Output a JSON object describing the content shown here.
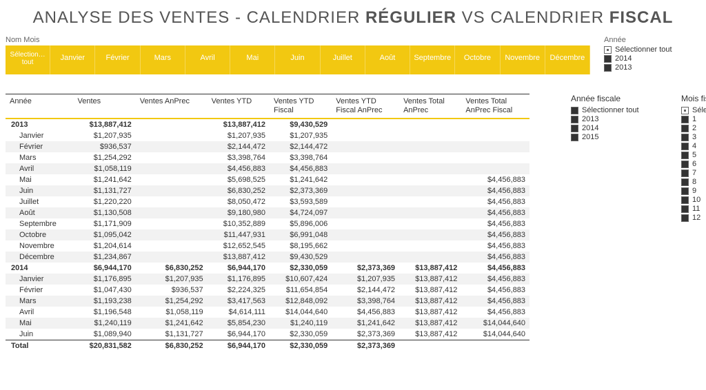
{
  "title_pre": "ANALYSE DES VENTES - CALENDRIER ",
  "title_b1": "RÉGULIER",
  "title_mid": " VS CALENDRIER ",
  "title_b2": "FISCAL",
  "month_label": "Nom Mois",
  "months": [
    "Sélection… tout",
    "Janvier",
    "Février",
    "Mars",
    "Avril",
    "Mai",
    "Juin",
    "Juillet",
    "Août",
    "Septembre",
    "Octobre",
    "Novembre",
    "Décembre"
  ],
  "annee_label": "Année",
  "annee_slicer": [
    {
      "txt": "Sélectionner tout",
      "cls": "dot"
    },
    {
      "txt": "2014",
      "cls": ""
    },
    {
      "txt": "2013",
      "cls": ""
    }
  ],
  "cols": [
    "Année",
    "Ventes",
    "Ventes AnPrec",
    "Ventes YTD",
    "Ventes YTD\nFiscal",
    "Ventes YTD\nFiscal AnPrec",
    "Ventes Total\nAnPrec",
    "Ventes Total\nAnPrec Fiscal"
  ],
  "rows": [
    {
      "t": "y",
      "c": [
        "2013",
        "$13,887,412",
        "",
        "$13,887,412",
        "$9,430,529",
        "",
        "",
        ""
      ]
    },
    {
      "t": "m",
      "a": 0,
      "c": [
        "Janvier",
        "$1,207,935",
        "",
        "$1,207,935",
        "$1,207,935",
        "",
        "",
        ""
      ]
    },
    {
      "t": "m",
      "a": 1,
      "c": [
        "Février",
        "$936,537",
        "",
        "$2,144,472",
        "$2,144,472",
        "",
        "",
        ""
      ]
    },
    {
      "t": "m",
      "a": 0,
      "c": [
        "Mars",
        "$1,254,292",
        "",
        "$3,398,764",
        "$3,398,764",
        "",
        "",
        ""
      ]
    },
    {
      "t": "m",
      "a": 1,
      "c": [
        "Avril",
        "$1,058,119",
        "",
        "$4,456,883",
        "$4,456,883",
        "",
        "",
        ""
      ]
    },
    {
      "t": "m",
      "a": 0,
      "c": [
        "Mai",
        "$1,241,642",
        "",
        "$5,698,525",
        "$1,241,642",
        "",
        "",
        "$4,456,883"
      ]
    },
    {
      "t": "m",
      "a": 1,
      "c": [
        "Juin",
        "$1,131,727",
        "",
        "$6,830,252",
        "$2,373,369",
        "",
        "",
        "$4,456,883"
      ]
    },
    {
      "t": "m",
      "a": 0,
      "c": [
        "Juillet",
        "$1,220,220",
        "",
        "$8,050,472",
        "$3,593,589",
        "",
        "",
        "$4,456,883"
      ]
    },
    {
      "t": "m",
      "a": 1,
      "c": [
        "Août",
        "$1,130,508",
        "",
        "$9,180,980",
        "$4,724,097",
        "",
        "",
        "$4,456,883"
      ]
    },
    {
      "t": "m",
      "a": 0,
      "c": [
        "Septembre",
        "$1,171,909",
        "",
        "$10,352,889",
        "$5,896,006",
        "",
        "",
        "$4,456,883"
      ]
    },
    {
      "t": "m",
      "a": 1,
      "c": [
        "Octobre",
        "$1,095,042",
        "",
        "$11,447,931",
        "$6,991,048",
        "",
        "",
        "$4,456,883"
      ]
    },
    {
      "t": "m",
      "a": 0,
      "c": [
        "Novembre",
        "$1,204,614",
        "",
        "$12,652,545",
        "$8,195,662",
        "",
        "",
        "$4,456,883"
      ]
    },
    {
      "t": "m",
      "a": 1,
      "c": [
        "Décembre",
        "$1,234,867",
        "",
        "$13,887,412",
        "$9,430,529",
        "",
        "",
        "$4,456,883"
      ]
    },
    {
      "t": "y",
      "a": 0,
      "c": [
        "2014",
        "$6,944,170",
        "$6,830,252",
        "$6,944,170",
        "$2,330,059",
        "$2,373,369",
        "$13,887,412",
        "$4,456,883"
      ]
    },
    {
      "t": "m",
      "a": 1,
      "c": [
        "Janvier",
        "$1,176,895",
        "$1,207,935",
        "$1,176,895",
        "$10,607,424",
        "$1,207,935",
        "$13,887,412",
        "$4,456,883"
      ]
    },
    {
      "t": "m",
      "a": 0,
      "c": [
        "Février",
        "$1,047,430",
        "$936,537",
        "$2,224,325",
        "$11,654,854",
        "$2,144,472",
        "$13,887,412",
        "$4,456,883"
      ]
    },
    {
      "t": "m",
      "a": 1,
      "c": [
        "Mars",
        "$1,193,238",
        "$1,254,292",
        "$3,417,563",
        "$12,848,092",
        "$3,398,764",
        "$13,887,412",
        "$4,456,883"
      ]
    },
    {
      "t": "m",
      "a": 0,
      "c": [
        "Avril",
        "$1,196,548",
        "$1,058,119",
        "$4,614,111",
        "$14,044,640",
        "$4,456,883",
        "$13,887,412",
        "$4,456,883"
      ]
    },
    {
      "t": "m",
      "a": 1,
      "c": [
        "Mai",
        "$1,240,119",
        "$1,241,642",
        "$5,854,230",
        "$1,240,119",
        "$1,241,642",
        "$13,887,412",
        "$14,044,640"
      ]
    },
    {
      "t": "m",
      "a": 0,
      "c": [
        "Juin",
        "$1,089,940",
        "$1,131,727",
        "$6,944,170",
        "$2,330,059",
        "$2,373,369",
        "$13,887,412",
        "$14,044,640"
      ]
    },
    {
      "t": "t",
      "c": [
        "Total",
        "$20,831,582",
        "$6,830,252",
        "$6,944,170",
        "$2,330,059",
        "$2,373,369",
        "",
        ""
      ]
    }
  ],
  "fiscal_year_label": "Année fiscale",
  "fiscal_years": [
    {
      "txt": "Sélectionner tout",
      "cls": ""
    },
    {
      "txt": "2013",
      "cls": ""
    },
    {
      "txt": "2014",
      "cls": ""
    },
    {
      "txt": "2015",
      "cls": ""
    }
  ],
  "fiscal_month_label": "Mois fiscal",
  "fiscal_months": [
    {
      "txt": "Sélectionner tout",
      "cls": "dot"
    },
    {
      "txt": "1",
      "cls": ""
    },
    {
      "txt": "2",
      "cls": ""
    },
    {
      "txt": "3",
      "cls": ""
    },
    {
      "txt": "4",
      "cls": ""
    },
    {
      "txt": "5",
      "cls": ""
    },
    {
      "txt": "6",
      "cls": ""
    },
    {
      "txt": "7",
      "cls": ""
    },
    {
      "txt": "8",
      "cls": ""
    },
    {
      "txt": "9",
      "cls": ""
    },
    {
      "txt": "10",
      "cls": ""
    },
    {
      "txt": "11",
      "cls": ""
    },
    {
      "txt": "12",
      "cls": ""
    }
  ]
}
